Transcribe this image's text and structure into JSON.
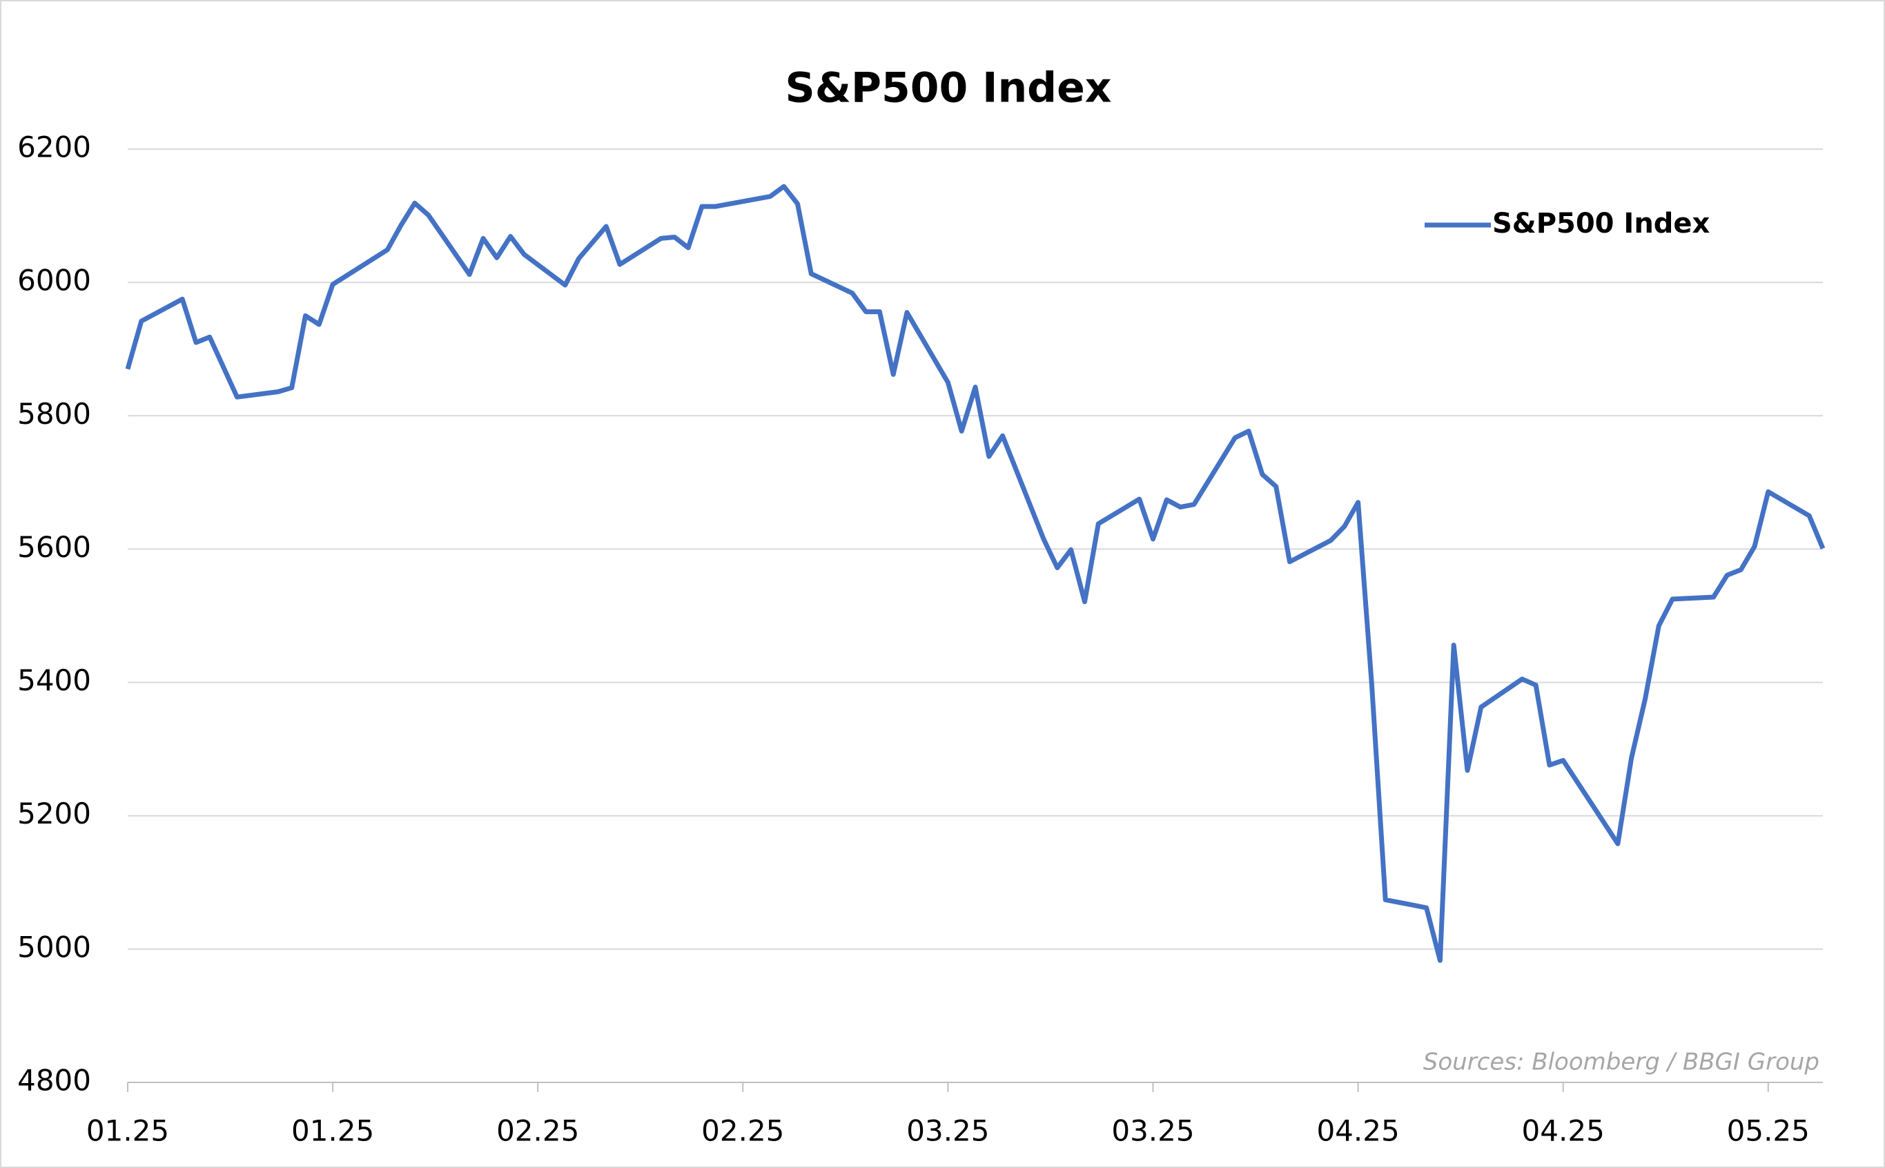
{
  "chart_data": {
    "type": "line",
    "title": "S&P500 Index",
    "source": "Sources: Bloomberg / BBGI Group",
    "x": [
      0,
      1,
      4,
      5,
      6,
      8,
      11,
      12,
      13,
      14,
      15,
      19,
      20,
      21,
      22,
      25,
      26,
      27,
      28,
      29,
      32,
      33,
      35,
      36,
      39,
      40,
      41,
      42,
      43,
      47,
      48,
      49,
      50,
      53,
      54,
      55,
      56,
      57,
      60,
      61,
      62,
      63,
      64,
      67,
      68,
      69,
      70,
      71,
      74,
      75,
      76,
      77,
      78,
      81,
      82,
      83,
      84,
      85,
      88,
      89,
      90,
      91,
      92,
      95,
      96,
      97,
      98,
      99,
      102,
      103,
      104,
      105,
      109,
      110,
      111,
      112,
      113,
      116,
      117,
      118,
      119,
      120,
      123,
      124
    ],
    "series": [
      {
        "name": "S&P500 Index",
        "color": "#4472c4",
        "values": [
          5870,
          5942,
          5975,
          5910,
          5918,
          5828,
          5836,
          5842,
          5950,
          5937,
          5997,
          6049,
          6086,
          6119,
          6101,
          6012,
          6066,
          6037,
          6069,
          6042,
          5996,
          6036,
          6084,
          6027,
          6066,
          6068,
          6052,
          6114,
          6114,
          6129,
          6144,
          6118,
          6013,
          5984,
          5956,
          5956,
          5862,
          5955,
          5850,
          5777,
          5843,
          5739,
          5770,
          5615,
          5572,
          5599,
          5521,
          5638,
          5675,
          5615,
          5674,
          5663,
          5667,
          5767,
          5777,
          5712,
          5694,
          5581,
          5613,
          5634,
          5670,
          5397,
          5074,
          5062,
          4983,
          5456,
          5268,
          5363,
          5405,
          5396,
          5276,
          5283,
          5158,
          5287,
          5375,
          5485,
          5525,
          5528,
          5561,
          5569,
          5604,
          5686,
          5650,
          5601
        ]
      }
    ],
    "xlim": [
      0,
      124
    ],
    "xticks": [
      {
        "value": 0,
        "label": "01.25"
      },
      {
        "value": 15,
        "label": "01.25"
      },
      {
        "value": 30,
        "label": "02.25"
      },
      {
        "value": 45,
        "label": "02.25"
      },
      {
        "value": 60,
        "label": "03.25"
      },
      {
        "value": 75,
        "label": "03.25"
      },
      {
        "value": 90,
        "label": "04.25"
      },
      {
        "value": 105,
        "label": "04.25"
      },
      {
        "value": 120,
        "label": "05.25"
      }
    ],
    "ylim": [
      4800,
      6200
    ],
    "yticks": [
      4800,
      5000,
      5200,
      5400,
      5600,
      5800,
      6000,
      6200
    ],
    "grid": true,
    "legend": "top-right"
  }
}
